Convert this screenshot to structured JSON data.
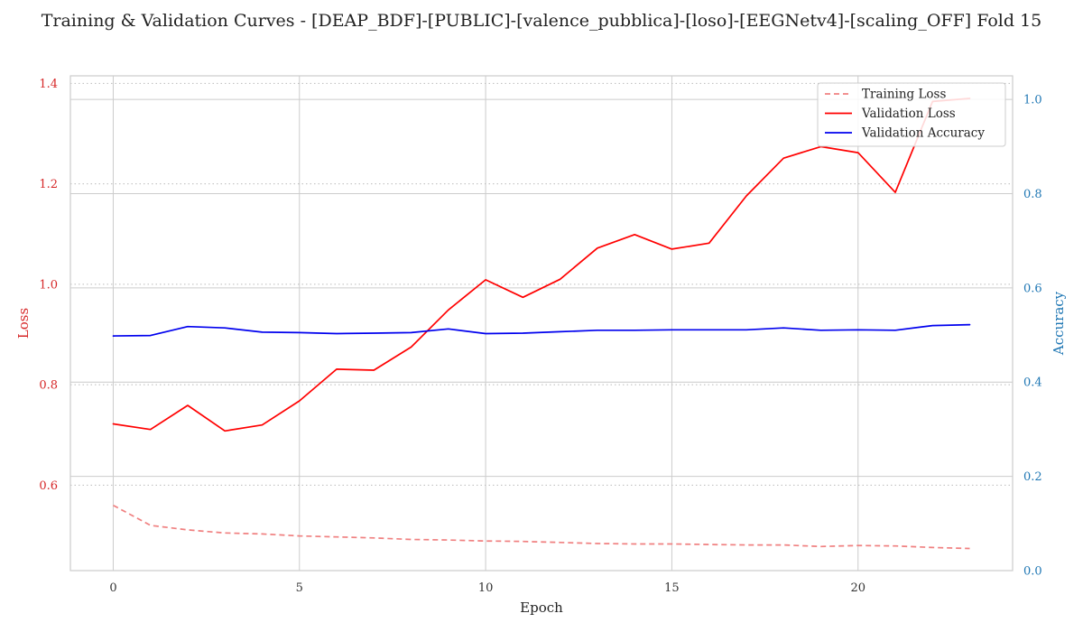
{
  "chart_data": {
    "type": "line",
    "title": "Training & Validation Curves - [DEAP_BDF]-[PUBLIC]-[valence_pubblica]-[loso]-[EEGNetv4]-[scaling_OFF] Fold 15",
    "xlabel": "Epoch",
    "ylabel_left": "Loss",
    "ylabel_right": "Accuracy",
    "x": [
      0,
      1,
      2,
      3,
      4,
      5,
      6,
      7,
      8,
      9,
      10,
      11,
      12,
      13,
      14,
      15,
      16,
      17,
      18,
      19,
      20,
      21,
      22,
      23
    ],
    "xlim": [
      -1.15,
      24.15
    ],
    "ylim_left": [
      0.43,
      1.415
    ],
    "ylim_right": [
      0.0,
      1.05
    ],
    "x_ticks": [
      0,
      5,
      10,
      15,
      20
    ],
    "y_ticks_left": [
      0.6,
      0.8,
      1.0,
      1.2,
      1.4
    ],
    "y_ticks_right": [
      0.0,
      0.2,
      0.4,
      0.6,
      0.8,
      1.0
    ],
    "x_tick_labels": [
      "0",
      "5",
      "10",
      "15",
      "20"
    ],
    "y_tick_labels_left": [
      "0.6",
      "0.8",
      "1.0",
      "1.2",
      "1.4"
    ],
    "y_tick_labels_right": [
      "0.0",
      "0.2",
      "0.4",
      "0.6",
      "0.8",
      "1.0"
    ],
    "grid": true,
    "legend_position": "top-right",
    "left_axis_color": "#d62728",
    "right_axis_color": "#1f77b4",
    "series": [
      {
        "name": "Training Loss",
        "axis": "left",
        "color": "#f08080",
        "style": "dashed",
        "values": [
          0.56,
          0.52,
          0.511,
          0.505,
          0.503,
          0.499,
          0.497,
          0.495,
          0.492,
          0.491,
          0.489,
          0.488,
          0.486,
          0.484,
          0.483,
          0.483,
          0.482,
          0.481,
          0.481,
          0.478,
          0.48,
          0.479,
          0.476,
          0.474
        ]
      },
      {
        "name": "Validation Loss",
        "axis": "left",
        "color": "#ff0000",
        "style": "solid",
        "values": [
          0.722,
          0.711,
          0.759,
          0.708,
          0.72,
          0.768,
          0.831,
          0.829,
          0.875,
          0.949,
          1.009,
          0.974,
          1.01,
          1.072,
          1.099,
          1.07,
          1.082,
          1.176,
          1.251,
          1.274,
          1.262,
          1.183,
          1.364,
          1.37
        ]
      },
      {
        "name": "Validation Accuracy",
        "axis": "right",
        "color": "#0000ee",
        "style": "solid",
        "values": [
          0.498,
          0.499,
          0.518,
          0.515,
          0.506,
          0.505,
          0.503,
          0.504,
          0.505,
          0.513,
          0.503,
          0.504,
          0.507,
          0.51,
          0.51,
          0.511,
          0.511,
          0.511,
          0.515,
          0.51,
          0.511,
          0.51,
          0.52,
          0.522
        ]
      }
    ]
  }
}
